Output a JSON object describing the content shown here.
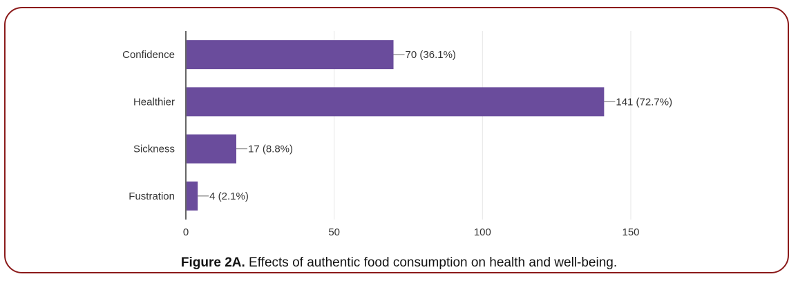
{
  "chart_data": {
    "type": "bar",
    "orientation": "horizontal",
    "categories": [
      "Confidence",
      "Healthier",
      "Sickness",
      "Fustration"
    ],
    "values": [
      70,
      141,
      17,
      4
    ],
    "data_labels": [
      "70 (36.1%)",
      "141 (72.7%)",
      "17 (8.8%)",
      "4 (2.1%)"
    ],
    "percentages": [
      36.1,
      72.7,
      8.8,
      2.1
    ],
    "xlim": [
      0,
      150
    ],
    "xticks": [
      0,
      50,
      100,
      150
    ],
    "grid": true,
    "bar_color": "#6a4c9c",
    "title": "",
    "xlabel": "",
    "ylabel": ""
  },
  "caption": {
    "bold": "Figure 2A.",
    "text": " Effects of authentic food consumption on health and well-being."
  },
  "colors": {
    "frame_border": "#8b1a1a",
    "grid": "#e6e6e6",
    "axis": "#333333"
  }
}
